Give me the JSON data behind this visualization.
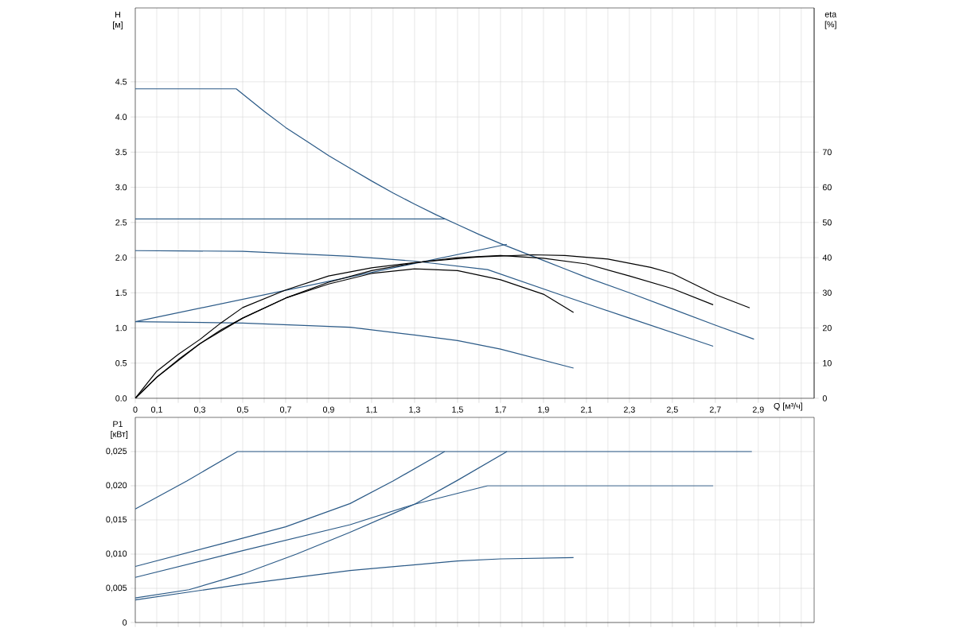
{
  "chart_data": [
    {
      "type": "line",
      "xlabel": "Q [м³/ч]",
      "ylabel": "H [м]",
      "y2label": "eta [%]",
      "xlim": [
        0,
        3.16
      ],
      "ylim": [
        0,
        5.55
      ],
      "y2lim": [
        0,
        111
      ],
      "xticks": [
        {
          "value": 0,
          "label": "0"
        },
        {
          "value": 0.1,
          "label": "0,1"
        },
        {
          "value": 0.2,
          "label": null
        },
        {
          "value": 0.3,
          "label": "0,3"
        },
        {
          "value": 0.4,
          "label": null
        },
        {
          "value": 0.5,
          "label": "0,5"
        },
        {
          "value": 0.6,
          "label": null
        },
        {
          "value": 0.7,
          "label": "0,7"
        },
        {
          "value": 0.8,
          "label": null
        },
        {
          "value": 0.9,
          "label": "0,9"
        },
        {
          "value": 1.0,
          "label": null
        },
        {
          "value": 1.1,
          "label": "1,1"
        },
        {
          "value": 1.2,
          "label": null
        },
        {
          "value": 1.3,
          "label": "1,3"
        },
        {
          "value": 1.4,
          "label": null
        },
        {
          "value": 1.5,
          "label": "1,5"
        },
        {
          "value": 1.6,
          "label": null
        },
        {
          "value": 1.7,
          "label": "1,7"
        },
        {
          "value": 1.8,
          "label": null
        },
        {
          "value": 1.9,
          "label": "1,9"
        },
        {
          "value": 2.0,
          "label": null
        },
        {
          "value": 2.1,
          "label": "2,1"
        },
        {
          "value": 2.2,
          "label": null
        },
        {
          "value": 2.3,
          "label": "2,3"
        },
        {
          "value": 2.4,
          "label": null
        },
        {
          "value": 2.5,
          "label": "2,5"
        },
        {
          "value": 2.6,
          "label": null
        },
        {
          "value": 2.7,
          "label": "2,7"
        },
        {
          "value": 2.8,
          "label": null
        },
        {
          "value": 2.9,
          "label": "2,9"
        },
        {
          "value": 3.0,
          "label": null
        },
        {
          "value": 3.1,
          "label": null
        }
      ],
      "yticks": [
        {
          "value": 0,
          "label": "0.0"
        },
        0.5,
        {
          "value": 1,
          "label": "1.0"
        },
        1.5,
        {
          "value": 2,
          "label": "2.0"
        },
        2.5,
        {
          "value": 3,
          "label": "3.0"
        },
        3.5,
        {
          "value": 4,
          "label": "4.0"
        },
        4.5
      ],
      "y2ticks": [
        0,
        10,
        20,
        30,
        40,
        50,
        60,
        70
      ],
      "grid": true,
      "legend": false,
      "marker": "none",
      "line_style": "solid",
      "series": [
        {
          "color": "#2b5a87",
          "x": [
            0,
            0.47,
            0.6,
            0.7,
            0.8,
            0.9,
            1.0,
            1.1,
            1.2,
            1.3,
            1.4,
            1.5,
            1.6,
            1.7,
            1.8,
            1.9,
            2.0,
            2.1,
            2.3,
            2.5,
            2.7,
            2.88
          ],
          "values": [
            4.4,
            4.4,
            4.08,
            3.85,
            3.65,
            3.45,
            3.27,
            3.09,
            2.92,
            2.76,
            2.61,
            2.47,
            2.33,
            2.2,
            2.08,
            1.96,
            1.84,
            1.72,
            1.5,
            1.27,
            1.04,
            0.84
          ]
        },
        {
          "color": "#2b5a87",
          "x": [
            0,
            1.44
          ],
          "values": [
            2.55,
            2.55
          ]
        },
        {
          "color": "#2b5a87",
          "x": [
            0,
            0.5,
            1.0,
            1.3,
            1.64,
            2.0,
            2.3,
            2.69
          ],
          "values": [
            2.1,
            2.09,
            2.02,
            1.95,
            1.83,
            1.45,
            1.14,
            0.74
          ]
        },
        {
          "color": "#2b5a87",
          "x": [
            0,
            0.5,
            1.0,
            1.3,
            1.5,
            1.7,
            2.04
          ],
          "values": [
            1.09,
            1.07,
            1.01,
            0.9,
            0.82,
            0.7,
            0.43
          ]
        },
        {
          "color": "#2b5a87",
          "x": [
            0,
            1.73
          ],
          "values": [
            1.09,
            2.19
          ]
        },
        {
          "color": "#000000",
          "axis": "y2",
          "x": [
            0,
            0.1,
            0.2,
            0.3,
            0.4,
            0.5,
            0.7,
            0.9,
            1.1,
            1.3,
            1.6,
            1.85,
            2.0,
            2.2,
            2.4,
            2.5,
            2.6,
            2.7,
            2.86
          ],
          "values": [
            0,
            7.7,
            12.5,
            16.7,
            21.5,
            25.8,
            30.8,
            34.8,
            37.1,
            38.6,
            40.2,
            40.8,
            40.6,
            39.6,
            37.2,
            35.5,
            32.5,
            29.5,
            25.7
          ]
        },
        {
          "color": "#000000",
          "axis": "y2",
          "x": [
            0,
            0.1,
            0.2,
            0.3,
            0.4,
            0.5,
            0.7,
            0.9,
            1.1,
            1.3,
            1.5,
            1.7,
            1.9,
            2.1,
            2.3,
            2.5,
            2.69
          ],
          "values": [
            0,
            6,
            11,
            15.5,
            19.5,
            22.8,
            28.5,
            33,
            36.3,
            38.5,
            40,
            40.6,
            39.8,
            38.2,
            34.8,
            31.2,
            26.6
          ]
        },
        {
          "color": "#000000",
          "axis": "y2",
          "x": [
            0,
            0.1,
            0.3,
            0.5,
            0.7,
            0.9,
            1.1,
            1.3,
            1.5,
            1.7,
            1.9,
            2.04
          ],
          "values": [
            0,
            6,
            15.5,
            22.8,
            28.5,
            32.5,
            35.5,
            36.8,
            36.3,
            33.7,
            29.6,
            24.4
          ]
        }
      ]
    },
    {
      "type": "line",
      "ylabel": "P1 [кВт]",
      "xlim": [
        0,
        3.16
      ],
      "ylim": [
        0,
        0.03
      ],
      "xticks": [
        0,
        0.1,
        0.2,
        0.3,
        0.4,
        0.5,
        0.6,
        0.7,
        0.8,
        0.9,
        1.0,
        1.1,
        1.2,
        1.3,
        1.4,
        1.5,
        1.6,
        1.7,
        1.8,
        1.9,
        2.0,
        2.1,
        2.2,
        2.3,
        2.4,
        2.5,
        2.6,
        2.7,
        2.8,
        2.9,
        3.0,
        3.1
      ],
      "yticks": [
        0,
        {
          "value": 0.005,
          "label": "0,005"
        },
        {
          "value": 0.01,
          "label": "0,010"
        },
        {
          "value": 0.015,
          "label": "0,015"
        },
        {
          "value": 0.02,
          "label": "0,020"
        },
        {
          "value": 0.025,
          "label": "0,025"
        }
      ],
      "tick_labels": "y",
      "grid": true,
      "legend": false,
      "marker": "none",
      "line_style": "solid",
      "series": [
        {
          "color": "#2b5a87",
          "x": [
            0,
            0.24,
            0.475,
            2.87
          ],
          "values": [
            0.0166,
            0.0207,
            0.025,
            0.025
          ]
        },
        {
          "color": "#2b5a87",
          "x": [
            0,
            0.4,
            0.7,
            1.0,
            1.2,
            1.44
          ],
          "values": [
            0.0082,
            0.0115,
            0.014,
            0.0174,
            0.0207,
            0.025
          ]
        },
        {
          "color": "#2b5a87",
          "x": [
            0,
            0.5,
            1.0,
            1.3,
            1.64,
            2.69
          ],
          "values": [
            0.0066,
            0.0105,
            0.0143,
            0.0173,
            0.02,
            0.02
          ]
        },
        {
          "color": "#2b5a87",
          "x": [
            0,
            0.25,
            0.5,
            0.75,
            1.0,
            1.3,
            1.5,
            1.73
          ],
          "values": [
            0.0036,
            0.0048,
            0.0071,
            0.01,
            0.0132,
            0.0173,
            0.0208,
            0.025
          ]
        },
        {
          "color": "#2b5a87",
          "x": [
            0,
            0.5,
            1.0,
            1.5,
            1.7,
            2.04
          ],
          "values": [
            0.0033,
            0.0056,
            0.0076,
            0.009,
            0.0093,
            0.0095
          ]
        }
      ]
    }
  ]
}
